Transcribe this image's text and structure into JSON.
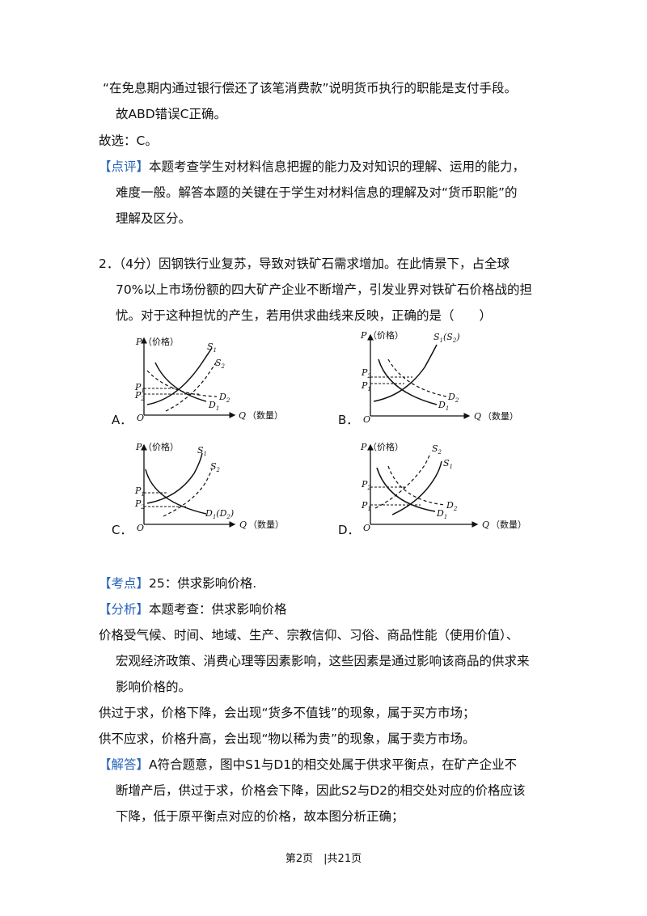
{
  "lines": {
    "l1": "“在免息期内通过银行偿还了该笔消费款”说明货币执行的职能是支付手段。",
    "l2": "故ABD错误C正确。",
    "l3": "故选：C。",
    "l4_tag": "【点评】",
    "l4": "本题考查学生对材料信息把握的能力及对知识的理解、运用的能力，",
    "l5": "难度一般。解答本题的关键在于学生对材料信息的理解及对“货币职能”的",
    "l6": "理解及区分。",
    "q2_1": "2．（4分）因钢铁行业复苏，导致对铁矿石需求增加。在此情景下，占全球",
    "q2_2": "70%以上市场份额的四大矿产企业不断增产，引发业界对铁矿石价格战的担",
    "q2_3": "忧。对于这种担忧的产生，若用供求曲线来反映，正确的是（　　）",
    "kd_tag": "【考点】",
    "kd": "25：供求影响价格.",
    "fx_tag": "【分析】",
    "fx": "本题考查：供求影响价格",
    "p1": "价格受气候、时间、地域、生产、宗教信仰、习俗、商品性能（使用价值）、",
    "p2": "宏观经济政策、消费心理等因素影响，这些因素是通过影响该商品的供求来",
    "p3": "影响价格的。",
    "p4": "供过于求，价格下降，会出现“货多不值钱”的现象，属于买方市场；",
    "p5": "供不应求，价格升高，会出现“物以稀为贵”的现象，属于卖方市场。",
    "jd_tag": "【解答】",
    "jd1": "A符合题意，图中S1与D1的相交处属于供求平衡点，在矿产企业不",
    "jd2": "断增产后，供过于求，价格会下降，因此S2与D2的相交处对应的价格应该",
    "jd3": "下降，低于原平衡点对应的价格，故本图分析正确；"
  },
  "options": [
    "A．",
    "B．",
    "C．",
    "D．"
  ],
  "graph": {
    "p_label": "P",
    "price": "（价格）",
    "q_label": "Q",
    "qty": "（数量）",
    "origin": "O",
    "S": "S",
    "D": "D",
    "P": "P",
    "s1s2": "(S",
    "d1d2": "(D",
    "close": ")",
    "one": "1",
    "two": "2"
  },
  "footer": "第2页　|共21页"
}
